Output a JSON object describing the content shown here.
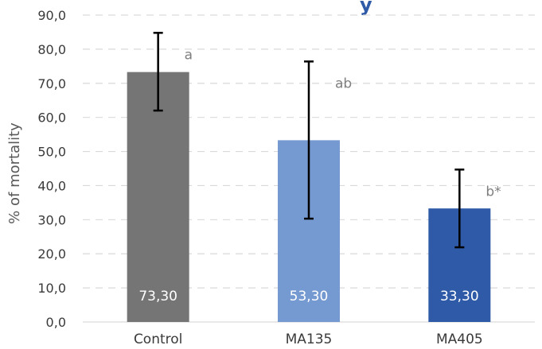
{
  "chart_data": {
    "type": "bar",
    "title_fragment": "y",
    "ylabel": "% of mortality",
    "xlabel": "",
    "ylim": [
      0,
      90
    ],
    "yticks": [
      "0,0",
      "10,0",
      "20,0",
      "30,0",
      "40,0",
      "50,0",
      "60,0",
      "70,0",
      "80,0",
      "90,0"
    ],
    "grid": "horizontal-dashed",
    "categories": [
      "Control",
      "MA135",
      "MA405"
    ],
    "values": [
      73.3,
      53.3,
      33.3
    ],
    "value_labels": [
      "73,30",
      "53,30",
      "33,30"
    ],
    "error_low": [
      62.0,
      30.3,
      21.9
    ],
    "error_high": [
      84.8,
      76.4,
      44.7
    ],
    "significance": [
      "a",
      "ab",
      "b*"
    ],
    "colors": [
      "#757575",
      "#7599d1",
      "#2e5aa8"
    ]
  }
}
